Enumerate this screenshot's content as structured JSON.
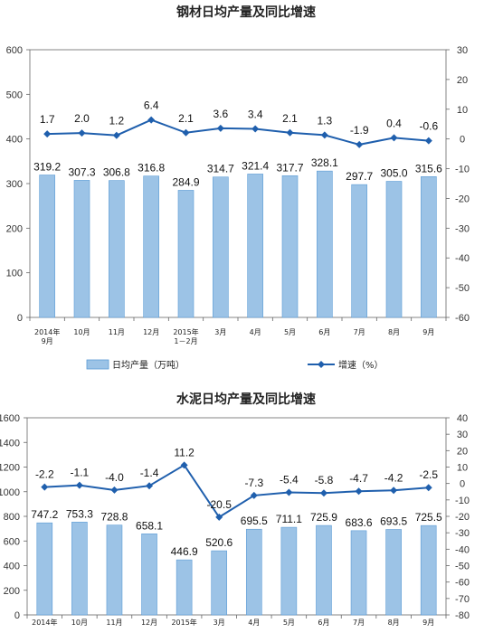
{
  "colors": {
    "bar": "#9cc3e6",
    "bar_stroke": "#5b9bd5",
    "line": "#1f5fad",
    "axis": "#666666"
  },
  "chart_data": [
    {
      "type": "bar+line",
      "title": "钢材日均产量及同比增速",
      "categories": [
        [
          "2014年",
          "9月"
        ],
        [
          "10月"
        ],
        [
          "11月"
        ],
        [
          "12月"
        ],
        [
          "2015年",
          "1－2月"
        ],
        [
          "3月"
        ],
        [
          "4月"
        ],
        [
          "5月"
        ],
        [
          "6月"
        ],
        [
          "7月"
        ],
        [
          "8月"
        ],
        [
          "9月"
        ]
      ],
      "series": [
        {
          "name": "日均产量（万吨）",
          "type": "bar",
          "axis": "left",
          "values": [
            319.2,
            307.3,
            306.8,
            316.8,
            284.9,
            314.7,
            321.4,
            317.7,
            328.1,
            297.7,
            305.0,
            315.6
          ],
          "labels": [
            "319.2",
            "307.3",
            "306.8",
            "316.8",
            "284.9",
            "314.7",
            "321.4",
            "317.7",
            "328.1",
            "297.7",
            "305.0",
            "315.6"
          ]
        },
        {
          "name": "增速（%）",
          "type": "line",
          "axis": "right",
          "values": [
            1.7,
            2.0,
            1.2,
            6.4,
            2.1,
            3.6,
            3.4,
            2.1,
            1.3,
            -1.9,
            0.4,
            -0.6
          ],
          "labels": [
            "1.7",
            "2.0",
            "1.2",
            "6.4",
            "2.1",
            "3.6",
            "3.4",
            "2.1",
            "1.3",
            "-1.9",
            "0.4",
            "-0.6"
          ]
        }
      ],
      "left_axis": {
        "min": 0,
        "max": 600,
        "ticks": [
          0,
          100,
          200,
          300,
          400,
          500,
          600
        ]
      },
      "right_axis": {
        "min": -60,
        "max": 30,
        "ticks": [
          30,
          20,
          10,
          0,
          -10,
          -20,
          -30,
          -40,
          -50,
          -60
        ]
      },
      "legend": {
        "position": "bottom",
        "entries": [
          "日均产量（万吨）",
          "增速（%）"
        ]
      },
      "grid": false
    },
    {
      "type": "bar+line",
      "title": "水泥日均产量及同比增速",
      "categories": [
        [
          "2014年"
        ],
        [
          "10月"
        ],
        [
          "11月"
        ],
        [
          "12月"
        ],
        [
          "2015年"
        ],
        [
          "3月"
        ],
        [
          "4月"
        ],
        [
          "5月"
        ],
        [
          "6月"
        ],
        [
          "7月"
        ],
        [
          "8月"
        ],
        [
          "9月"
        ]
      ],
      "series": [
        {
          "type": "bar",
          "axis": "left",
          "values": [
            747.2,
            753.3,
            728.8,
            658.1,
            446.9,
            520.6,
            695.5,
            711.1,
            725.9,
            683.6,
            693.5,
            725.5
          ],
          "labels": [
            "747.2",
            "753.3",
            "728.8",
            "658.1",
            "446.9",
            "520.6",
            "695.5",
            "711.1",
            "725.9",
            "683.6",
            "693.5",
            "725.5"
          ]
        },
        {
          "type": "line",
          "axis": "right",
          "values": [
            -2.2,
            -1.1,
            -4.0,
            -1.4,
            11.2,
            -20.5,
            -7.3,
            -5.4,
            -5.8,
            -4.7,
            -4.2,
            -2.5
          ],
          "labels": [
            "-2.2",
            "-1.1",
            "-4.0",
            "-1.4",
            "11.2",
            "-20.5",
            "-7.3",
            "-5.4",
            "-5.8",
            "-4.7",
            "-4.2",
            "-2.5"
          ]
        }
      ],
      "left_axis": {
        "min": 0,
        "max": 1600,
        "ticks": [
          0,
          200,
          400,
          600,
          800,
          1000,
          1200,
          1400,
          1600
        ],
        "tick_labels": [
          "0",
          "200",
          "400",
          "600",
          "800",
          "1000",
          "1200",
          "1400",
          "1600"
        ]
      },
      "right_axis": {
        "min": -80,
        "max": 40,
        "ticks": [
          40,
          30,
          20,
          10,
          0,
          -10,
          -20,
          -30,
          -40,
          -50,
          -60,
          -70,
          -80
        ]
      },
      "grid": false
    }
  ]
}
